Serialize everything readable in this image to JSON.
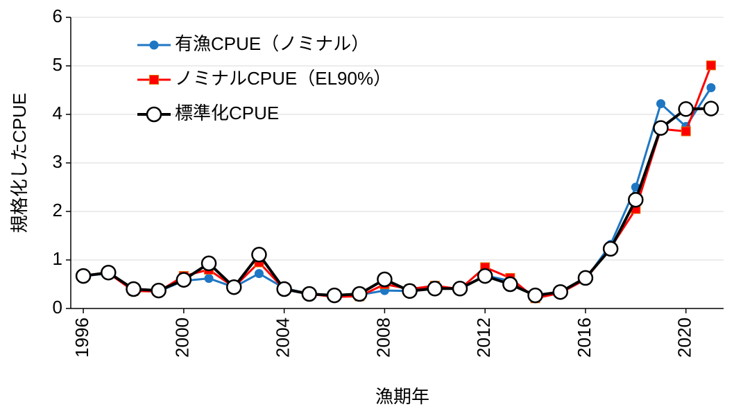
{
  "chart_data": {
    "type": "line",
    "x_label": "漁期年",
    "y_label": "規格化したCPUE",
    "x": [
      1996,
      1997,
      1998,
      1999,
      2000,
      2001,
      2002,
      2003,
      2004,
      2005,
      2006,
      2007,
      2008,
      2009,
      2010,
      2011,
      2012,
      2013,
      2014,
      2015,
      2016,
      2017,
      2018,
      2019,
      2020,
      2021
    ],
    "series": [
      {
        "name": "有漁CPUE（ノミナル）",
        "color": "#1f77c4",
        "marker": "circle",
        "values": [
          0.67,
          0.72,
          0.4,
          0.35,
          0.57,
          0.62,
          0.44,
          0.72,
          0.42,
          0.3,
          0.25,
          0.28,
          0.37,
          0.36,
          0.44,
          0.39,
          0.68,
          0.57,
          0.23,
          0.32,
          0.6,
          1.32,
          2.5,
          4.22,
          3.75,
          4.55
        ]
      },
      {
        "name": "ノミナルCPUE（EL90%）",
        "color": "#ff0000",
        "marker": "square",
        "values": [
          0.67,
          0.73,
          0.36,
          0.35,
          0.67,
          0.8,
          0.44,
          0.95,
          0.4,
          0.3,
          0.24,
          0.25,
          0.5,
          0.4,
          0.47,
          0.4,
          0.85,
          0.63,
          0.21,
          0.32,
          0.6,
          1.25,
          2.05,
          3.7,
          3.65,
          5.01
        ]
      },
      {
        "name": "標準化CPUE",
        "color": "#000000",
        "marker": "hollow-circle",
        "values": [
          0.67,
          0.74,
          0.4,
          0.37,
          0.59,
          0.93,
          0.44,
          1.11,
          0.4,
          0.3,
          0.27,
          0.3,
          0.6,
          0.36,
          0.41,
          0.41,
          0.67,
          0.5,
          0.27,
          0.34,
          0.63,
          1.23,
          2.24,
          3.72,
          4.11,
          4.12
        ]
      }
    ],
    "xlim": [
      1995.5,
      2021.5
    ],
    "xticks": [
      1996,
      2000,
      2004,
      2008,
      2012,
      2016,
      2020
    ],
    "ylim": [
      0,
      6
    ],
    "yticks": [
      0,
      1,
      2,
      3,
      4,
      5,
      6
    ],
    "grid": true,
    "legend": "upper left"
  }
}
